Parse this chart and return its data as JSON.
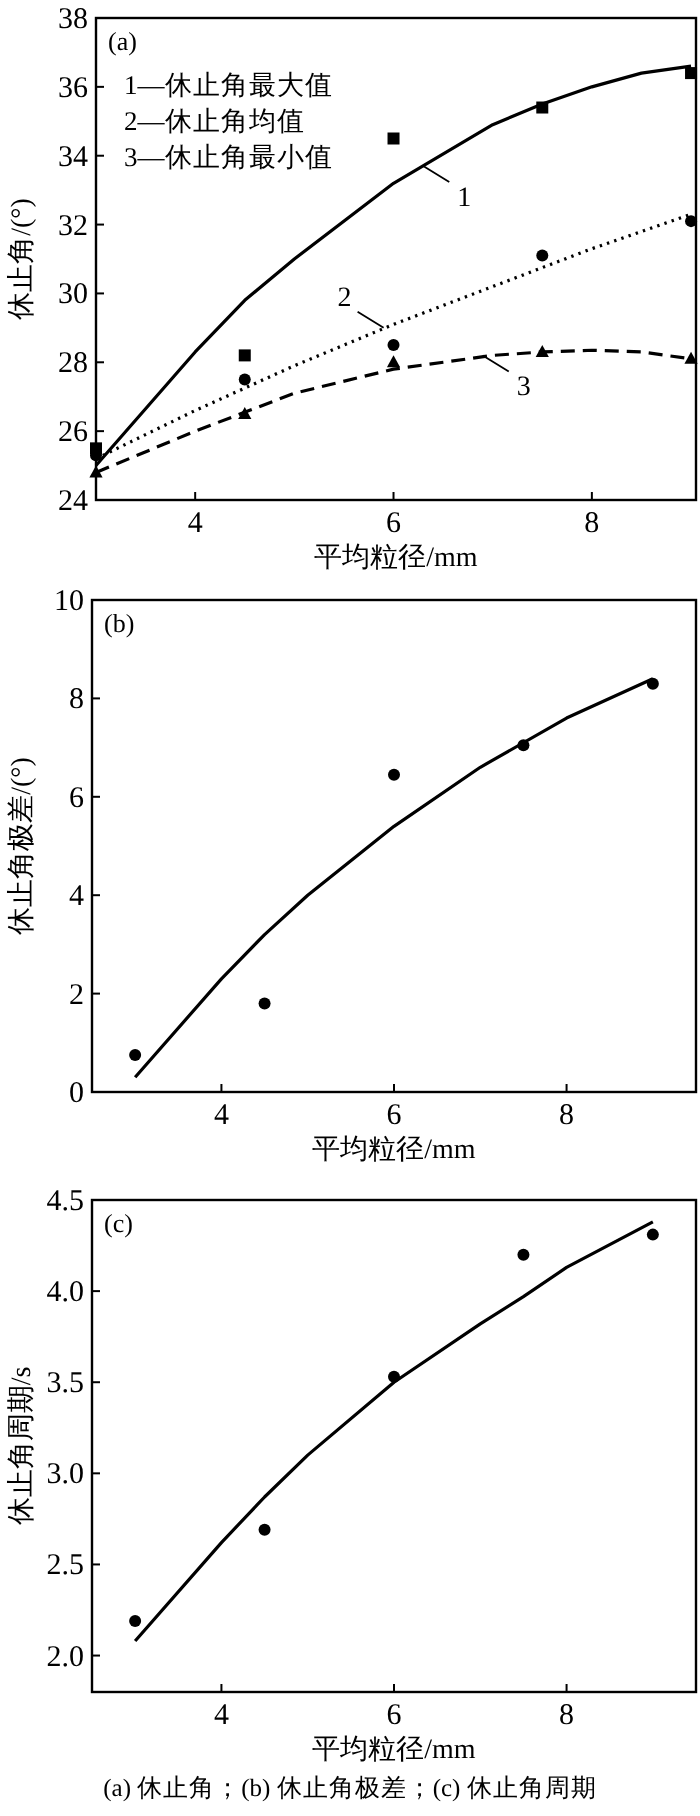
{
  "chart_data": [
    {
      "type": "scatter",
      "title": "(a)",
      "xlabel": "平均粒径/mm",
      "ylabel": "休止角/(°)",
      "xlim": [
        3,
        9.05
      ],
      "xticks": [
        4,
        6,
        8
      ],
      "ylim": [
        24,
        38
      ],
      "yticks": [
        24,
        26,
        28,
        30,
        32,
        34,
        36,
        38
      ],
      "grid": false,
      "x": [
        3,
        4.5,
        6,
        7.5,
        9
      ],
      "annotations": [
        "1—休止角最大值",
        "2—休止角均值",
        "3—休止角最小值",
        {
          "text": "1",
          "x": 6.3,
          "y": 33.7
        },
        {
          "text": "2",
          "x": 5.9,
          "y": 29.0
        },
        {
          "text": "3",
          "x": 6.9,
          "y": 28.2
        }
      ],
      "series": [
        {
          "type": "scatter",
          "marker": "square",
          "color": "#000000",
          "values": [
            25.5,
            28.2,
            34.5,
            35.4,
            36.4
          ]
        },
        {
          "type": "scatter",
          "marker": "circle",
          "color": "#000000",
          "values": [
            25.3,
            27.5,
            28.5,
            31.1,
            32.1
          ]
        },
        {
          "type": "scatter",
          "marker": "triangle",
          "color": "#000000",
          "values": [
            24.8,
            26.5,
            28.0,
            28.3,
            28.1
          ]
        },
        {
          "type": "line",
          "marker": "none",
          "line_style": "solid",
          "color": "#000000",
          "x": [
            3,
            4,
            4.5,
            5,
            6,
            7,
            7.5,
            8,
            8.5,
            9
          ],
          "values": [
            25.0,
            28.3,
            29.8,
            31.0,
            33.2,
            34.9,
            35.5,
            36.0,
            36.4,
            36.6
          ]
        },
        {
          "type": "line",
          "marker": "none",
          "line_style": "dotted",
          "color": "#000000",
          "x": [
            3,
            4,
            5,
            6,
            7,
            8,
            9
          ],
          "values": [
            25.2,
            26.6,
            27.9,
            29.1,
            30.2,
            31.3,
            32.3
          ]
        },
        {
          "type": "line",
          "marker": "none",
          "line_style": "dashed",
          "color": "#000000",
          "x": [
            3,
            4,
            5,
            6,
            7,
            7.5,
            8,
            8.5,
            9
          ],
          "values": [
            24.8,
            26.0,
            27.1,
            27.8,
            28.2,
            28.3,
            28.35,
            28.3,
            28.1
          ]
        }
      ]
    },
    {
      "type": "scatter",
      "title": "(b)",
      "xlabel": "平均粒径/mm",
      "ylabel": "休止角极差/(°)",
      "xlim": [
        2.5,
        9.5
      ],
      "xticks": [
        4,
        6,
        8
      ],
      "ylim": [
        0,
        10
      ],
      "yticks": [
        0,
        2,
        4,
        6,
        8,
        10
      ],
      "grid": false,
      "x": [
        3,
        4.5,
        6,
        7.5,
        9
      ],
      "series": [
        {
          "type": "scatter",
          "marker": "circle",
          "color": "#000000",
          "values": [
            0.75,
            1.8,
            6.45,
            7.05,
            8.3
          ]
        },
        {
          "type": "line",
          "marker": "none",
          "line_style": "solid",
          "color": "#000000",
          "x": [
            3,
            4,
            4.5,
            5,
            6,
            7,
            8,
            9
          ],
          "values": [
            0.3,
            2.3,
            3.2,
            4.0,
            5.4,
            6.6,
            7.6,
            8.4
          ]
        }
      ]
    },
    {
      "type": "scatter",
      "title": "(c)",
      "xlabel": "平均粒径/mm",
      "ylabel": "休止角周期/s",
      "xlim": [
        2.5,
        9.5
      ],
      "xticks": [
        4,
        6,
        8
      ],
      "ylim": [
        1.8,
        4.5
      ],
      "yticks": [
        {
          "value": 2.0,
          "label": "2.0"
        },
        2.5,
        {
          "value": 3.0,
          "label": "3.0"
        },
        3.5,
        {
          "value": 4.0,
          "label": "4.0"
        },
        4.5
      ],
      "grid": false,
      "x": [
        3,
        4.5,
        6,
        7.5,
        9
      ],
      "annotations": [
        "(a) 休止角；(b) 休止角极差；(c) 休止角周期"
      ],
      "series": [
        {
          "type": "scatter",
          "marker": "circle",
          "color": "#000000",
          "values": [
            2.19,
            2.69,
            3.53,
            4.2,
            4.31
          ]
        },
        {
          "type": "line",
          "marker": "none",
          "line_style": "solid",
          "color": "#000000",
          "x": [
            3,
            4,
            4.5,
            5,
            6,
            7,
            7.5,
            8,
            9
          ],
          "values": [
            2.08,
            2.62,
            2.87,
            3.1,
            3.5,
            3.82,
            3.97,
            4.13,
            4.38
          ]
        }
      ]
    }
  ]
}
